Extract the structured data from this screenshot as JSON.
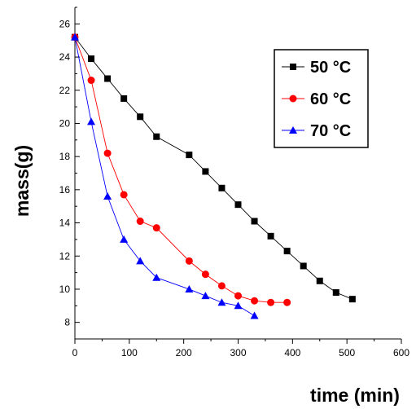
{
  "chart_data": {
    "type": "line",
    "title": "",
    "xlabel": "time (min)",
    "ylabel": "mass(g)",
    "xlim": [
      0,
      600
    ],
    "ylim": [
      7,
      27
    ],
    "xticks": [
      0,
      100,
      200,
      300,
      400,
      500,
      600
    ],
    "yticks": [
      8,
      10,
      12,
      14,
      16,
      18,
      20,
      22,
      24,
      26
    ],
    "grid": false,
    "legend_position": "top-right",
    "series": [
      {
        "name": "50 °C",
        "color": "#000000",
        "marker": "square",
        "x": [
          0,
          30,
          60,
          90,
          120,
          150,
          210,
          240,
          270,
          300,
          330,
          360,
          390,
          420,
          450,
          480,
          510
        ],
        "y": [
          25.2,
          23.9,
          22.7,
          21.5,
          20.4,
          19.2,
          18.1,
          17.1,
          16.1,
          15.1,
          14.1,
          13.2,
          12.3,
          11.4,
          10.5,
          9.8,
          9.4
        ]
      },
      {
        "name": "60 °C",
        "color": "#ff0000",
        "marker": "circle",
        "x": [
          0,
          30,
          60,
          90,
          120,
          150,
          210,
          240,
          270,
          300,
          330,
          360,
          390
        ],
        "y": [
          25.2,
          22.6,
          18.2,
          15.7,
          14.1,
          13.7,
          11.7,
          10.9,
          10.2,
          9.6,
          9.3,
          9.2,
          9.2
        ]
      },
      {
        "name": "70 °C",
        "color": "#0000ff",
        "marker": "triangle",
        "x": [
          0,
          30,
          60,
          90,
          120,
          150,
          210,
          240,
          270,
          300,
          330
        ],
        "y": [
          25.2,
          20.1,
          15.6,
          13.0,
          11.7,
          10.7,
          10.0,
          9.6,
          9.2,
          9.0,
          8.4
        ]
      }
    ]
  }
}
